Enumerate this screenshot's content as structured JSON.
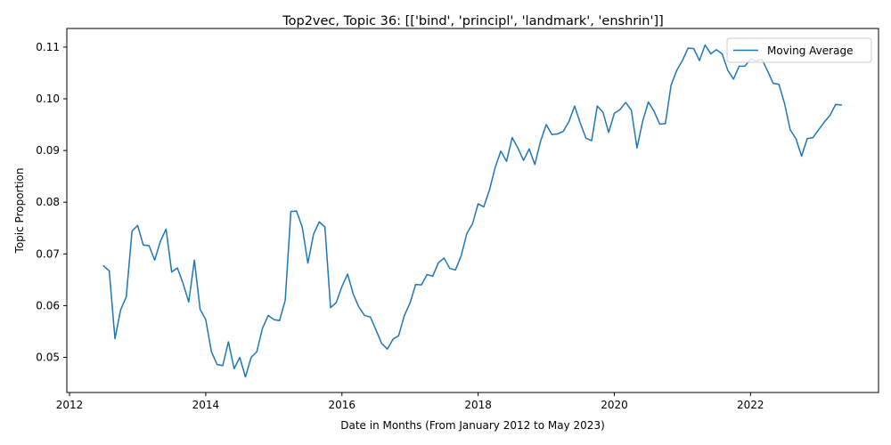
{
  "chart_data": {
    "type": "line",
    "title": "Top2vec, Topic 36: [['bind', 'principl', 'landmark', 'enshrin']]",
    "xlabel": "Date in Months (From January 2012 to May 2023)",
    "ylabel": "Topic Proportion",
    "xlim": [
      2011.96,
      2023.88
    ],
    "ylim": [
      0.0432,
      0.1136
    ],
    "x_ticks": [
      2012,
      2014,
      2016,
      2018,
      2020,
      2022
    ],
    "x_tick_labels": [
      "2012",
      "2014",
      "2016",
      "2018",
      "2020",
      "2022"
    ],
    "y_ticks": [
      0.05,
      0.06,
      0.07,
      0.08,
      0.09,
      0.1,
      0.11
    ],
    "y_tick_labels": [
      "0.05",
      "0.06",
      "0.07",
      "0.08",
      "0.09",
      "0.10",
      "0.11"
    ],
    "grid": false,
    "legend": {
      "position": "upper-right",
      "entries": [
        "Moving Average"
      ]
    },
    "series": [
      {
        "name": "Moving Average",
        "color": "#1f77b4",
        "x": [
          2012.5,
          2012.583,
          2012.667,
          2012.75,
          2012.833,
          2012.917,
          2013.0,
          2013.083,
          2013.167,
          2013.25,
          2013.333,
          2013.417,
          2013.5,
          2013.583,
          2013.667,
          2013.75,
          2013.833,
          2013.917,
          2014.0,
          2014.083,
          2014.167,
          2014.25,
          2014.333,
          2014.417,
          2014.5,
          2014.583,
          2014.667,
          2014.75,
          2014.833,
          2014.917,
          2015.0,
          2015.083,
          2015.167,
          2015.25,
          2015.333,
          2015.417,
          2015.5,
          2015.583,
          2015.667,
          2015.75,
          2015.833,
          2015.917,
          2016.0,
          2016.083,
          2016.167,
          2016.25,
          2016.333,
          2016.417,
          2016.5,
          2016.583,
          2016.667,
          2016.75,
          2016.833,
          2016.917,
          2017.0,
          2017.083,
          2017.167,
          2017.25,
          2017.333,
          2017.417,
          2017.5,
          2017.583,
          2017.667,
          2017.75,
          2017.833,
          2017.917,
          2018.0,
          2018.083,
          2018.167,
          2018.25,
          2018.333,
          2018.417,
          2018.5,
          2018.583,
          2018.667,
          2018.75,
          2018.833,
          2018.917,
          2019.0,
          2019.083,
          2019.167,
          2019.25,
          2019.333,
          2019.417,
          2019.5,
          2019.583,
          2019.667,
          2019.75,
          2019.833,
          2019.917,
          2020.0,
          2020.083,
          2020.167,
          2020.25,
          2020.333,
          2020.417,
          2020.5,
          2020.583,
          2020.667,
          2020.75,
          2020.833,
          2020.917,
          2021.0,
          2021.083,
          2021.167,
          2021.25,
          2021.333,
          2021.417,
          2021.5,
          2021.583,
          2021.667,
          2021.75,
          2021.833,
          2021.917,
          2022.0,
          2022.083,
          2022.167,
          2022.25,
          2022.333,
          2022.417,
          2022.5,
          2022.583,
          2022.667,
          2022.75,
          2022.833,
          2022.917,
          2023.0,
          2023.083,
          2023.167,
          2023.25,
          2023.333
        ],
        "values": [
          0.0677,
          0.0667,
          0.0536,
          0.0592,
          0.0617,
          0.0744,
          0.0755,
          0.0717,
          0.0716,
          0.0688,
          0.0724,
          0.0748,
          0.0665,
          0.0673,
          0.0643,
          0.0607,
          0.0688,
          0.0593,
          0.0573,
          0.0511,
          0.0486,
          0.0484,
          0.053,
          0.0478,
          0.05,
          0.0462,
          0.05,
          0.0511,
          0.0556,
          0.0581,
          0.0573,
          0.0571,
          0.061,
          0.0782,
          0.0783,
          0.0752,
          0.0682,
          0.0738,
          0.0762,
          0.0752,
          0.0596,
          0.0606,
          0.0637,
          0.0661,
          0.0622,
          0.0597,
          0.0581,
          0.0578,
          0.0553,
          0.0527,
          0.0516,
          0.0535,
          0.0542,
          0.0581,
          0.0605,
          0.0641,
          0.064,
          0.066,
          0.0657,
          0.0683,
          0.0692,
          0.0672,
          0.0669,
          0.0696,
          0.0739,
          0.0758,
          0.0797,
          0.0791,
          0.0824,
          0.0867,
          0.0899,
          0.0879,
          0.0925,
          0.0905,
          0.0881,
          0.0903,
          0.0873,
          0.0918,
          0.095,
          0.0931,
          0.0932,
          0.0937,
          0.0956,
          0.0986,
          0.0953,
          0.0924,
          0.0919,
          0.0986,
          0.0974,
          0.0935,
          0.0972,
          0.0979,
          0.0993,
          0.0978,
          0.0905,
          0.0957,
          0.0994,
          0.0976,
          0.0951,
          0.0952,
          0.1026,
          0.1055,
          0.1074,
          0.1098,
          0.1097,
          0.1074,
          0.1104,
          0.1087,
          0.1095,
          0.1087,
          0.1055,
          0.1038,
          0.1063,
          0.1063,
          0.1077,
          0.1073,
          0.1077,
          0.1054,
          0.103,
          0.1028,
          0.0991,
          0.094,
          0.0923,
          0.0889,
          0.0923,
          0.0925,
          0.094,
          0.0955,
          0.0968,
          0.0989,
          0.0988
        ]
      }
    ]
  }
}
